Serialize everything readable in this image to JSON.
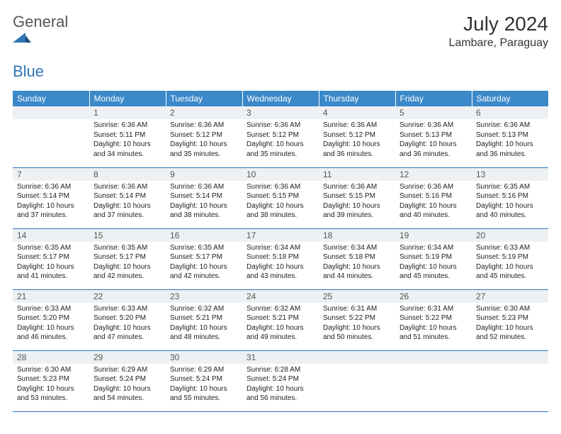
{
  "logo": {
    "general": "General",
    "blue": "Blue"
  },
  "title": {
    "month": "July 2024",
    "location": "Lambare, Paraguay"
  },
  "colors": {
    "headerBg": "#3b89c9",
    "rowBorder": "#2f74b5",
    "dayNumBg": "#eef1f3",
    "logoBlue": "#2f74b5"
  },
  "weekdays": [
    "Sunday",
    "Monday",
    "Tuesday",
    "Wednesday",
    "Thursday",
    "Friday",
    "Saturday"
  ],
  "weeks": [
    [
      {
        "n": "",
        "sr": "",
        "ss": "",
        "dl": ""
      },
      {
        "n": "1",
        "sr": "6:36 AM",
        "ss": "5:11 PM",
        "dl": "10 hours and 34 minutes."
      },
      {
        "n": "2",
        "sr": "6:36 AM",
        "ss": "5:12 PM",
        "dl": "10 hours and 35 minutes."
      },
      {
        "n": "3",
        "sr": "6:36 AM",
        "ss": "5:12 PM",
        "dl": "10 hours and 35 minutes."
      },
      {
        "n": "4",
        "sr": "6:36 AM",
        "ss": "5:12 PM",
        "dl": "10 hours and 36 minutes."
      },
      {
        "n": "5",
        "sr": "6:36 AM",
        "ss": "5:13 PM",
        "dl": "10 hours and 36 minutes."
      },
      {
        "n": "6",
        "sr": "6:36 AM",
        "ss": "5:13 PM",
        "dl": "10 hours and 36 minutes."
      }
    ],
    [
      {
        "n": "7",
        "sr": "6:36 AM",
        "ss": "5:14 PM",
        "dl": "10 hours and 37 minutes."
      },
      {
        "n": "8",
        "sr": "6:36 AM",
        "ss": "5:14 PM",
        "dl": "10 hours and 37 minutes."
      },
      {
        "n": "9",
        "sr": "6:36 AM",
        "ss": "5:14 PM",
        "dl": "10 hours and 38 minutes."
      },
      {
        "n": "10",
        "sr": "6:36 AM",
        "ss": "5:15 PM",
        "dl": "10 hours and 38 minutes."
      },
      {
        "n": "11",
        "sr": "6:36 AM",
        "ss": "5:15 PM",
        "dl": "10 hours and 39 minutes."
      },
      {
        "n": "12",
        "sr": "6:36 AM",
        "ss": "5:16 PM",
        "dl": "10 hours and 40 minutes."
      },
      {
        "n": "13",
        "sr": "6:35 AM",
        "ss": "5:16 PM",
        "dl": "10 hours and 40 minutes."
      }
    ],
    [
      {
        "n": "14",
        "sr": "6:35 AM",
        "ss": "5:17 PM",
        "dl": "10 hours and 41 minutes."
      },
      {
        "n": "15",
        "sr": "6:35 AM",
        "ss": "5:17 PM",
        "dl": "10 hours and 42 minutes."
      },
      {
        "n": "16",
        "sr": "6:35 AM",
        "ss": "5:17 PM",
        "dl": "10 hours and 42 minutes."
      },
      {
        "n": "17",
        "sr": "6:34 AM",
        "ss": "5:18 PM",
        "dl": "10 hours and 43 minutes."
      },
      {
        "n": "18",
        "sr": "6:34 AM",
        "ss": "5:18 PM",
        "dl": "10 hours and 44 minutes."
      },
      {
        "n": "19",
        "sr": "6:34 AM",
        "ss": "5:19 PM",
        "dl": "10 hours and 45 minutes."
      },
      {
        "n": "20",
        "sr": "6:33 AM",
        "ss": "5:19 PM",
        "dl": "10 hours and 45 minutes."
      }
    ],
    [
      {
        "n": "21",
        "sr": "6:33 AM",
        "ss": "5:20 PM",
        "dl": "10 hours and 46 minutes."
      },
      {
        "n": "22",
        "sr": "6:33 AM",
        "ss": "5:20 PM",
        "dl": "10 hours and 47 minutes."
      },
      {
        "n": "23",
        "sr": "6:32 AM",
        "ss": "5:21 PM",
        "dl": "10 hours and 48 minutes."
      },
      {
        "n": "24",
        "sr": "6:32 AM",
        "ss": "5:21 PM",
        "dl": "10 hours and 49 minutes."
      },
      {
        "n": "25",
        "sr": "6:31 AM",
        "ss": "5:22 PM",
        "dl": "10 hours and 50 minutes."
      },
      {
        "n": "26",
        "sr": "6:31 AM",
        "ss": "5:22 PM",
        "dl": "10 hours and 51 minutes."
      },
      {
        "n": "27",
        "sr": "6:30 AM",
        "ss": "5:23 PM",
        "dl": "10 hours and 52 minutes."
      }
    ],
    [
      {
        "n": "28",
        "sr": "6:30 AM",
        "ss": "5:23 PM",
        "dl": "10 hours and 53 minutes."
      },
      {
        "n": "29",
        "sr": "6:29 AM",
        "ss": "5:24 PM",
        "dl": "10 hours and 54 minutes."
      },
      {
        "n": "30",
        "sr": "6:29 AM",
        "ss": "5:24 PM",
        "dl": "10 hours and 55 minutes."
      },
      {
        "n": "31",
        "sr": "6:28 AM",
        "ss": "5:24 PM",
        "dl": "10 hours and 56 minutes."
      },
      {
        "n": "",
        "sr": "",
        "ss": "",
        "dl": ""
      },
      {
        "n": "",
        "sr": "",
        "ss": "",
        "dl": ""
      },
      {
        "n": "",
        "sr": "",
        "ss": "",
        "dl": ""
      }
    ]
  ],
  "labels": {
    "sunrise": "Sunrise:",
    "sunset": "Sunset:",
    "daylight": "Daylight:"
  }
}
